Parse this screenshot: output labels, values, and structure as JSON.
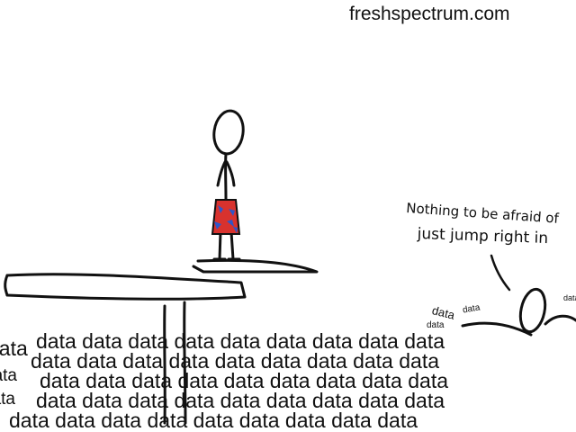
{
  "watermark": "freshspectrum.com",
  "speech": {
    "line1": "Nothing to be afraid of",
    "line2": "just jump right in"
  },
  "sea_word": "data",
  "sea_rows": [
    "data data data data data data data data data",
    "data data data data data data data data data",
    "data data data data data data data data data",
    "data data data data data data data data data",
    "data data data data data data data data data"
  ],
  "splash_words": [
    "data",
    "data",
    "data",
    "data"
  ],
  "colors": {
    "ink": "#111111",
    "shorts_red": "#d8322e",
    "shorts_blue": "#2f56c8"
  }
}
